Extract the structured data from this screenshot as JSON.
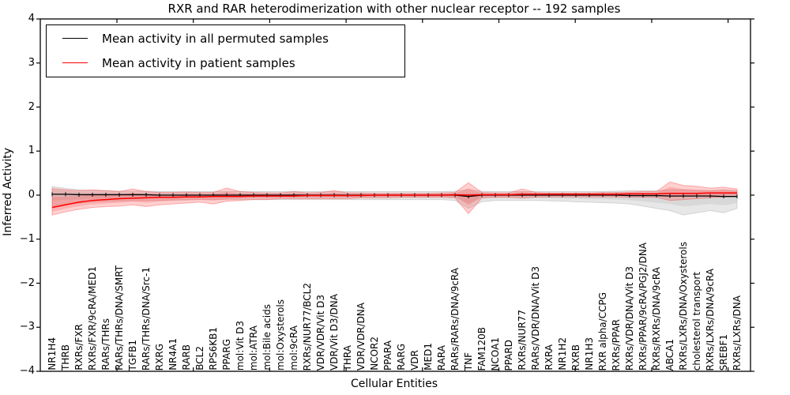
{
  "title": "RXR and RAR heterodimerization with other nuclear receptor -- 192 samples",
  "axes": {
    "xlabel": "Cellular Entities",
    "ylabel": "Inferred Activity"
  },
  "legend": [
    {
      "label": "Mean activity in all permuted samples",
      "color": "#000000"
    },
    {
      "label": "Mean activity in patient samples",
      "color": "#ff0000"
    }
  ],
  "colors": {
    "permuted_line": "#000000",
    "patient_line": "#ff0000",
    "permuted_band": "#aaaaaa",
    "patient_band": "#ff4444",
    "axis": "#000000"
  },
  "chart_data": {
    "type": "line",
    "title": "RXR and RAR heterodimerization with other nuclear receptor -- 192 samples",
    "xlabel": "Cellular Entities",
    "ylabel": "Inferred Activity",
    "ylim": [
      -4,
      4
    ],
    "yticks": [
      4,
      3,
      2,
      1,
      0,
      -1,
      -2,
      -3,
      -4
    ],
    "grid": false,
    "legend_position": "upper left",
    "categories": [
      "NR1H4",
      "THRB",
      "RXRs/FXR",
      "RXRs/FXR/9cRA/MED1",
      "RARs/THRs",
      "RARs/THRs/DNA/SMRT",
      "TGFB1",
      "RARs/THRs/DNA/Src-1",
      "RXRG",
      "NR4A1",
      "RARB",
      "BCL2",
      "RPS6KB1",
      "PPARG",
      "mol:Vit D3",
      "mol:ATRA",
      "mol:Bile acids",
      "mol:Oxysterols",
      "mol:9cRA",
      "RXRs/NUR77/BCL2",
      "VDR/VDR/Vit D3",
      "VDR/Vit D3/DNA",
      "THRA",
      "VDR/VDR/DNA",
      "NCOR2",
      "PPARA",
      "RARG",
      "VDR",
      "MED1",
      "RARA",
      "RARs/RARs/DNA/9cRA",
      "TNF",
      "FAM120B",
      "NCOA1",
      "PPARD",
      "RXRs/NUR77",
      "RARs/VDR/DNA/Vit D3",
      "RXRA",
      "NR1H2",
      "RXRB",
      "NR1H3",
      "RXR alpha/CCPG",
      "RXRs/PPAR",
      "RXRs/VDR/DNA/Vit D3",
      "RXRs/PPAR/9cRA/PGJ2/DNA",
      "RXRs/RXRs/DNA/9cRA",
      "ABCA1",
      "RXRs/LXRs/DNA/Oxysterols",
      "cholesterol transport",
      "RXRs/LXRs/DNA/9cRA",
      "SREBF1",
      "RXRs/LXRs/DNA"
    ],
    "series": [
      {
        "name": "Mean activity in all permuted samples",
        "color": "#000000",
        "marker": "tick",
        "values": [
          0.02,
          0.02,
          0.01,
          0.01,
          0.01,
          0.01,
          0.01,
          0.01,
          0.0,
          0.0,
          0.0,
          0.0,
          0.0,
          0.0,
          0.0,
          0.0,
          0.0,
          0.0,
          0.0,
          0.0,
          0.0,
          0.0,
          0.0,
          0.0,
          0.0,
          0.0,
          0.0,
          0.0,
          0.0,
          0.0,
          0.0,
          -0.03,
          0.0,
          0.0,
          0.0,
          0.0,
          0.0,
          0.0,
          0.0,
          0.0,
          0.0,
          0.0,
          0.0,
          -0.01,
          -0.01,
          -0.01,
          -0.02,
          -0.02,
          -0.02,
          -0.02,
          -0.03,
          -0.03
        ]
      },
      {
        "name": "Mean activity in patient samples",
        "color": "#ff0000",
        "marker": "none",
        "values": [
          -0.28,
          -0.22,
          -0.16,
          -0.12,
          -0.1,
          -0.08,
          -0.07,
          -0.06,
          -0.05,
          -0.05,
          -0.04,
          -0.04,
          -0.03,
          -0.03,
          -0.03,
          -0.02,
          -0.02,
          -0.02,
          -0.02,
          -0.01,
          -0.01,
          -0.01,
          -0.01,
          -0.01,
          0.0,
          0.0,
          0.0,
          0.0,
          0.0,
          0.0,
          0.01,
          0.0,
          0.01,
          0.01,
          0.01,
          0.02,
          0.02,
          0.02,
          0.02,
          0.02,
          0.02,
          0.02,
          0.02,
          0.03,
          0.03,
          0.03,
          0.04,
          0.04,
          0.04,
          0.05,
          0.05,
          0.05
        ]
      }
    ],
    "bands": [
      {
        "name": "permuted samples range",
        "color": "#aaaaaa",
        "opacity": 0.28,
        "upper": [
          0.2,
          0.15,
          0.12,
          0.1,
          0.1,
          0.09,
          0.09,
          0.09,
          0.08,
          0.08,
          0.08,
          0.08,
          0.08,
          0.08,
          0.08,
          0.08,
          0.08,
          0.08,
          0.08,
          0.08,
          0.08,
          0.08,
          0.08,
          0.08,
          0.08,
          0.08,
          0.08,
          0.08,
          0.08,
          0.08,
          0.09,
          0.12,
          0.09,
          0.08,
          0.08,
          0.08,
          0.08,
          0.08,
          0.08,
          0.08,
          0.08,
          0.08,
          0.09,
          0.1,
          0.1,
          0.1,
          0.12,
          0.12,
          0.1,
          0.1,
          0.12,
          0.1
        ],
        "lower": [
          -0.25,
          -0.2,
          -0.18,
          -0.15,
          -0.14,
          -0.13,
          -0.12,
          -0.12,
          -0.12,
          -0.11,
          -0.11,
          -0.1,
          -0.1,
          -0.1,
          -0.1,
          -0.1,
          -0.1,
          -0.1,
          -0.1,
          -0.1,
          -0.1,
          -0.1,
          -0.1,
          -0.1,
          -0.1,
          -0.1,
          -0.1,
          -0.1,
          -0.1,
          -0.1,
          -0.12,
          -0.3,
          -0.15,
          -0.12,
          -0.12,
          -0.12,
          -0.12,
          -0.13,
          -0.14,
          -0.15,
          -0.16,
          -0.17,
          -0.18,
          -0.2,
          -0.25,
          -0.3,
          -0.35,
          -0.45,
          -0.4,
          -0.35,
          -0.4,
          -0.3
        ]
      },
      {
        "name": "patient samples range",
        "color": "#ff4444",
        "opacity": 0.25,
        "upper": [
          0.15,
          0.12,
          0.1,
          0.12,
          0.1,
          0.08,
          0.14,
          0.08,
          0.06,
          0.06,
          0.07,
          0.06,
          0.06,
          0.16,
          0.08,
          0.06,
          0.05,
          0.05,
          0.08,
          0.05,
          0.06,
          0.1,
          0.05,
          0.05,
          0.04,
          0.04,
          0.04,
          0.04,
          0.04,
          0.05,
          0.06,
          0.28,
          0.06,
          0.05,
          0.05,
          0.14,
          0.06,
          0.05,
          0.05,
          0.05,
          0.05,
          0.06,
          0.06,
          0.07,
          0.08,
          0.08,
          0.3,
          0.22,
          0.2,
          0.16,
          0.18,
          0.14
        ],
        "lower": [
          -0.45,
          -0.38,
          -0.32,
          -0.28,
          -0.26,
          -0.25,
          -0.22,
          -0.26,
          -0.22,
          -0.2,
          -0.18,
          -0.16,
          -0.2,
          -0.14,
          -0.12,
          -0.1,
          -0.1,
          -0.08,
          -0.08,
          -0.08,
          -0.08,
          -0.08,
          -0.08,
          -0.06,
          -0.06,
          -0.06,
          -0.05,
          -0.05,
          -0.05,
          -0.05,
          -0.06,
          -0.42,
          -0.06,
          -0.05,
          -0.05,
          -0.07,
          -0.05,
          -0.04,
          -0.04,
          -0.04,
          -0.04,
          -0.04,
          -0.04,
          -0.05,
          -0.05,
          -0.05,
          -0.12,
          -0.1,
          -0.08,
          -0.06,
          -0.04,
          -0.02
        ]
      }
    ]
  }
}
